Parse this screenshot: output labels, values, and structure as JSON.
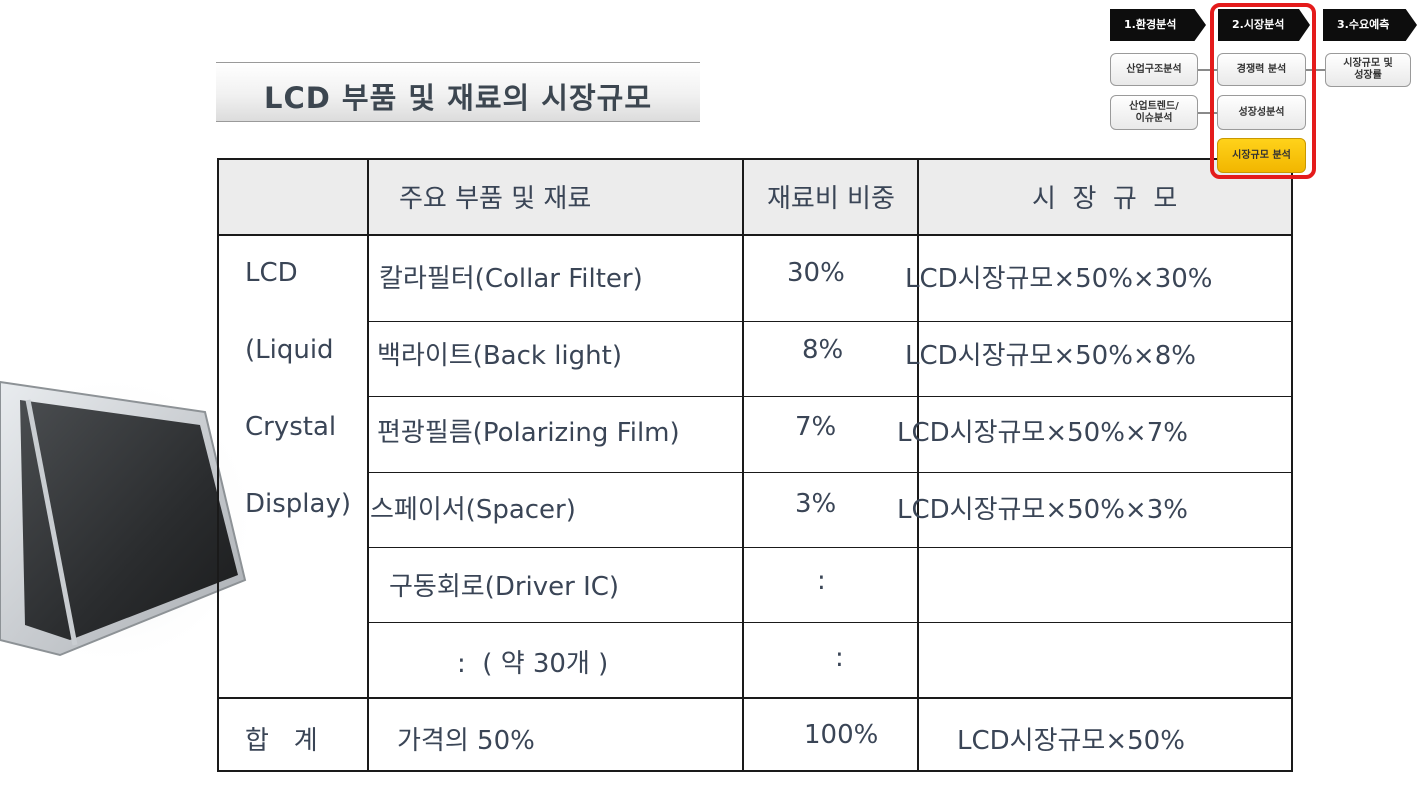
{
  "title": "LCD 부품 및 재료의 시장규모",
  "nav": {
    "steps": [
      "1.환경분석",
      "2.시장분석",
      "3.수요예측"
    ],
    "boxes": {
      "industry_structure": "산업구조분석",
      "industry_trend_l1": "산업트렌드/",
      "industry_trend_l2": "이슈분석",
      "competition": "경쟁력 분석",
      "growth": "성장성분석",
      "market_size": "시장규모 분석",
      "size_growth_l1": "시장규모 및",
      "size_growth_l2": "성장률"
    }
  },
  "table": {
    "headers": [
      "주요 부품 및 재료",
      "재료비 비중",
      "시  장  규  모"
    ],
    "category_lines": [
      "LCD",
      "(Liquid",
      "Crystal",
      "Display)"
    ],
    "rows": [
      {
        "item": "칼라필터(Collar Filter)",
        "share": "30%",
        "size": "LCD시장규모×50%×30%"
      },
      {
        "item": "백라이트(Back light)",
        "share": "8%",
        "size": "LCD시장규모×50%×8%"
      },
      {
        "item": "편광필름(Polarizing Film)",
        "share": "7%",
        "size": "LCD시장규모×50%×7%"
      },
      {
        "item": "스페이서(Spacer)",
        "share": "3%",
        "size": "LCD시장규모×50%×3%"
      },
      {
        "item": "구동회로(Driver IC)",
        "share": ":",
        "size": ""
      },
      {
        "item": ":  ( 약 30개 )",
        "share": ":",
        "size": ""
      }
    ],
    "total": {
      "label": "합   계",
      "item": "가격의 50%",
      "share": "100%",
      "size": "LCD시장규모×50%"
    }
  }
}
